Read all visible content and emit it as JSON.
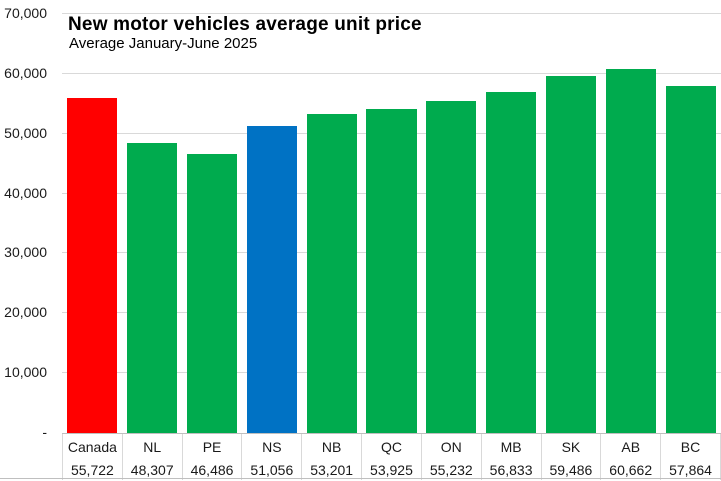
{
  "colors": {
    "bar_default": "#00AB4E",
    "bar_canada": "#FF0000",
    "bar_ns": "#0072C4",
    "gridline": "#D9D9D9",
    "table_border": "#D9D9D9",
    "axis_border": "#BFBFBF"
  },
  "chart_data": {
    "type": "bar",
    "title": "New motor vehicles average unit price",
    "subtitle": "Average January-June 2025",
    "categories": [
      "Canada",
      "NL",
      "PE",
      "NS",
      "NB",
      "QC",
      "ON",
      "MB",
      "SK",
      "AB",
      "BC"
    ],
    "values": [
      55722,
      48307,
      46486,
      51056,
      53201,
      53925,
      55232,
      56833,
      59486,
      60662,
      57864
    ],
    "value_labels": [
      "55,722",
      "48,307",
      "46,486",
      "51,056",
      "53,201",
      "53,925",
      "55,232",
      "56,833",
      "59,486",
      "60,662",
      "57,864"
    ],
    "bar_colors": [
      "#FF0000",
      "#00AB4E",
      "#00AB4E",
      "#0072C4",
      "#00AB4E",
      "#00AB4E",
      "#00AB4E",
      "#00AB4E",
      "#00AB4E",
      "#00AB4E",
      "#00AB4E"
    ],
    "ylim": [
      0,
      70000
    ],
    "ytick_interval": 10000,
    "ytick_labels": [
      "-",
      "10,000",
      "20,000",
      "30,000",
      "40,000",
      "50,000",
      "60,000",
      "70,000"
    ],
    "grid": true,
    "legend": false,
    "data_table": true,
    "xlabel": "",
    "ylabel": ""
  }
}
